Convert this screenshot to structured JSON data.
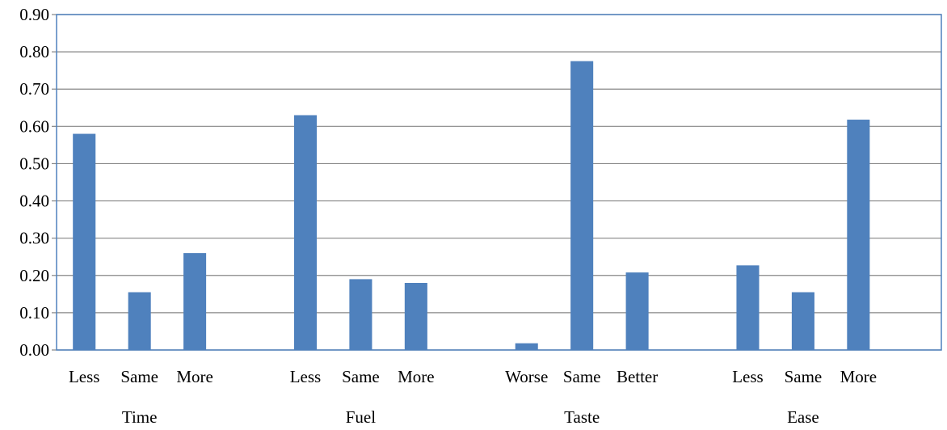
{
  "chart_data": {
    "type": "bar",
    "title": "",
    "xlabel": "",
    "ylabel": "",
    "ylim": [
      0,
      0.9
    ],
    "yticks": [
      "0.00",
      "0.10",
      "0.20",
      "0.30",
      "0.40",
      "0.50",
      "0.60",
      "0.70",
      "0.80",
      "0.90"
    ],
    "grid": true,
    "bar_color": "#4F81BD",
    "groups": [
      {
        "name": "Time",
        "categories": [
          "Less",
          "Same",
          "More"
        ],
        "values": [
          0.58,
          0.155,
          0.26
        ]
      },
      {
        "name": "Fuel",
        "categories": [
          "Less",
          "Same",
          "More"
        ],
        "values": [
          0.63,
          0.19,
          0.18
        ]
      },
      {
        "name": "Taste",
        "categories": [
          "Worse",
          "Same",
          "Better"
        ],
        "values": [
          0.018,
          0.775,
          0.208
        ]
      },
      {
        "name": "Ease",
        "categories": [
          "Less",
          "Same",
          "More"
        ],
        "values": [
          0.227,
          0.155,
          0.618
        ]
      }
    ]
  }
}
